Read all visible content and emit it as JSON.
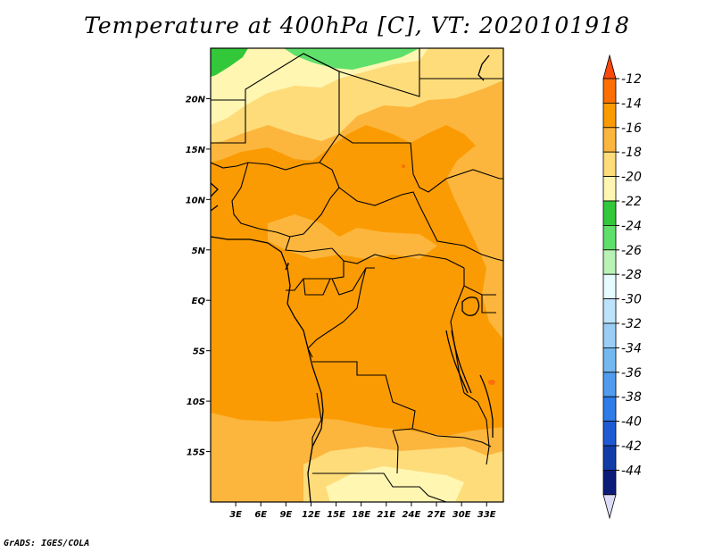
{
  "title": "Temperature at 400hPa [C], VT: 2020101918",
  "credit": "GrADS: IGES/COLA",
  "map": {
    "lon_range": [
      0,
      35
    ],
    "lat_range": [
      -20,
      25
    ],
    "x_ticks": [
      {
        "value": 3,
        "label": "3E"
      },
      {
        "value": 6,
        "label": "6E"
      },
      {
        "value": 9,
        "label": "9E"
      },
      {
        "value": 12,
        "label": "12E"
      },
      {
        "value": 15,
        "label": "15E"
      },
      {
        "value": 18,
        "label": "18E"
      },
      {
        "value": 21,
        "label": "21E"
      },
      {
        "value": 24,
        "label": "24E"
      },
      {
        "value": 27,
        "label": "27E"
      },
      {
        "value": 30,
        "label": "30E"
      },
      {
        "value": 33,
        "label": "33E"
      }
    ],
    "y_ticks": [
      {
        "value": 20,
        "label": "20N"
      },
      {
        "value": 15,
        "label": "15N"
      },
      {
        "value": 10,
        "label": "10N"
      },
      {
        "value": 5,
        "label": "5N"
      },
      {
        "value": 0,
        "label": "EQ"
      },
      {
        "value": -5,
        "label": "5S"
      },
      {
        "value": -10,
        "label": "10S"
      },
      {
        "value": -15,
        "label": "15S"
      }
    ]
  },
  "colorbar": {
    "bins": [
      "#fb4a0e",
      "#fb6f03",
      "#fb9b03",
      "#fcb63d",
      "#fedc7a",
      "#fff6b1",
      "#32c83a",
      "#5fe06a",
      "#b8f3b5",
      "#e6fbff",
      "#bde3fb",
      "#9acef6",
      "#74b8f0",
      "#509df0",
      "#2e7bea",
      "#1e5ad4",
      "#123ca8",
      "#0c1a7a"
    ],
    "low_arrow_color": "#dcdcf8",
    "labels": [
      "-12",
      "-14",
      "-16",
      "-18",
      "-20",
      "-22",
      "-24",
      "-26",
      "-28",
      "-30",
      "-32",
      "-34",
      "-36",
      "-38",
      "-40",
      "-42",
      "-44"
    ]
  }
}
